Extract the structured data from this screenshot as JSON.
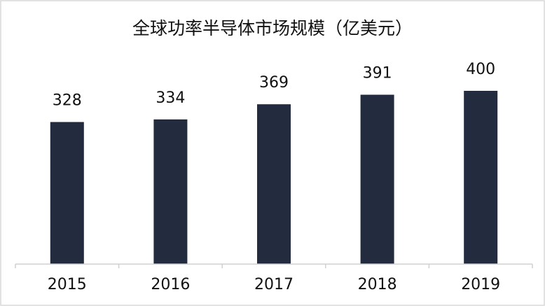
{
  "chart_data": {
    "type": "bar",
    "title": "全球功率半导体市场规模（亿美元）",
    "categories": [
      "2015",
      "2016",
      "2017",
      "2018",
      "2019"
    ],
    "values": [
      328,
      334,
      369,
      391,
      400
    ],
    "color": "#232b3e",
    "ylim": [
      0,
      450
    ]
  }
}
